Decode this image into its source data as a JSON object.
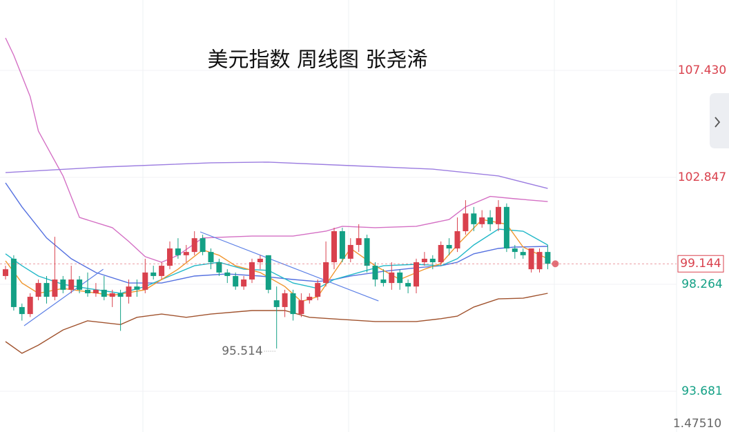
{
  "chart_data": {
    "type": "candlestick",
    "title": "美元指数  周线图 张尧浠",
    "ylim": [
      91.936,
      110.446
    ],
    "yticks": [
      {
        "value": 107.43,
        "label": "107.430"
      },
      {
        "value": 102.847,
        "label": "102.847"
      },
      {
        "value": 98.264,
        "label": "98.264"
      },
      {
        "value": 93.681,
        "label": "93.681"
      }
    ],
    "grid": true,
    "up_color": "#d9414d",
    "down_color": "#13a085",
    "open": [
      98.62,
      99.36,
      97.29,
      96.99,
      97.73,
      98.32,
      97.73,
      98.47,
      98.03,
      98.47,
      98.03,
      97.88,
      98.03,
      97.73,
      97.88,
      97.73,
      98.17,
      98.03,
      98.77,
      98.62,
      99.06,
      99.8,
      99.51,
      99.65,
      100.24,
      99.65,
      99.21,
      98.77,
      98.62,
      98.17,
      98.47,
      99.21,
      99.51,
      97.58,
      97.29,
      97.88,
      96.99,
      97.58,
      97.73,
      98.32,
      99.21,
      100.54,
      99.36,
      99.95,
      100.24,
      99.06,
      98.47,
      98.32,
      98.77,
      98.32,
      98.17,
      99.21,
      99.36,
      99.21,
      99.95,
      99.8,
      100.54,
      101.3,
      100.84,
      101.13,
      100.84,
      101.58,
      99.8,
      99.65,
      98.91,
      98.91,
      99.65
    ],
    "high": [
      99.06,
      99.51,
      97.44,
      97.88,
      98.47,
      98.62,
      100.3,
      98.62,
      99.06,
      98.62,
      98.77,
      98.32,
      98.62,
      98.03,
      98.03,
      98.47,
      98.47,
      99.36,
      99.06,
      99.21,
      100.1,
      100.24,
      99.95,
      100.54,
      100.39,
      99.8,
      99.36,
      98.91,
      98.77,
      98.62,
      99.36,
      99.51,
      99.51,
      98.17,
      98.03,
      98.03,
      97.88,
      97.88,
      98.47,
      100.1,
      100.69,
      100.69,
      100.24,
      100.84,
      100.39,
      99.21,
      98.91,
      99.21,
      98.91,
      98.47,
      99.36,
      99.65,
      99.51,
      100.1,
      100.24,
      101.13,
      101.87,
      101.58,
      101.44,
      101.44,
      101.87,
      101.73,
      99.95,
      99.8,
      99.8,
      99.8,
      99.95
    ],
    "low": [
      98.47,
      97.14,
      96.71,
      96.86,
      97.58,
      97.44,
      97.58,
      97.88,
      97.88,
      97.88,
      97.73,
      97.73,
      97.58,
      97.29,
      96.27,
      97.44,
      97.73,
      97.88,
      98.47,
      98.47,
      98.91,
      99.36,
      99.21,
      99.51,
      99.51,
      98.91,
      98.62,
      98.32,
      98.03,
      98.03,
      98.32,
      98.91,
      97.88,
      95.514,
      96.86,
      96.71,
      96.86,
      97.44,
      97.58,
      98.17,
      98.91,
      99.21,
      99.21,
      99.65,
      98.77,
      98.17,
      98.17,
      98.03,
      98.03,
      97.88,
      97.88,
      99.06,
      98.91,
      99.06,
      99.51,
      99.65,
      100.39,
      100.54,
      100.69,
      100.54,
      100.54,
      99.65,
      99.36,
      99.36,
      98.77,
      98.77,
      98.91
    ],
    "close": [
      98.91,
      97.29,
      96.99,
      97.73,
      98.32,
      97.73,
      98.47,
      98.03,
      98.47,
      98.03,
      97.88,
      98.03,
      97.73,
      97.88,
      97.73,
      98.17,
      98.03,
      98.77,
      98.62,
      99.06,
      99.8,
      99.51,
      99.65,
      100.24,
      99.65,
      99.21,
      98.77,
      98.62,
      98.17,
      98.47,
      99.21,
      99.36,
      98.03,
      97.29,
      97.88,
      96.99,
      97.58,
      97.73,
      98.32,
      99.21,
      100.54,
      99.36,
      99.95,
      100.24,
      99.06,
      98.47,
      98.32,
      98.77,
      98.32,
      98.17,
      99.21,
      99.36,
      99.21,
      99.95,
      99.8,
      100.54,
      101.3,
      100.84,
      101.13,
      100.84,
      101.58,
      99.8,
      99.65,
      99.51,
      99.8,
      99.65,
      99.144
    ],
    "lines": [
      {
        "color": "#d46fc4",
        "x": [
          0,
          1,
          3,
          4,
          7,
          9,
          13,
          15,
          17,
          19,
          21,
          24,
          30,
          35,
          39,
          41,
          45,
          50,
          54,
          56,
          59,
          62,
          66
        ],
        "values": [
          108.82,
          108.08,
          106.31,
          104.83,
          102.91,
          101.13,
          100.69,
          100.1,
          99.45,
          99.21,
          99.51,
          100.25,
          100.33,
          100.33,
          100.54,
          100.75,
          100.69,
          100.75,
          101.04,
          101.58,
          102.03,
          101.93,
          101.81
        ]
      },
      {
        "color": "#9b7ce0",
        "x": [
          0,
          12,
          25,
          32,
          42,
          52,
          60,
          66
        ],
        "values": [
          103.05,
          103.29,
          103.47,
          103.5,
          103.35,
          103.2,
          102.91,
          102.37
        ]
      },
      {
        "color": "#5470e0",
        "x": [
          0,
          2,
          5,
          8,
          11,
          15,
          19,
          23,
          27,
          31,
          35,
          38,
          40,
          42,
          46,
          50,
          53,
          55,
          57,
          60,
          62,
          66
        ],
        "values": [
          102.61,
          101.58,
          100.25,
          99.36,
          98.77,
          98.32,
          98.32,
          98.62,
          98.71,
          98.62,
          98.47,
          98.38,
          98.47,
          98.62,
          98.82,
          98.97,
          99.06,
          99.21,
          99.57,
          99.8,
          99.86,
          99.89
        ]
      },
      {
        "color": "#22b8c8",
        "x": [
          0,
          2,
          4,
          7,
          10,
          14,
          17,
          20,
          23,
          26,
          29,
          32,
          35,
          38,
          40,
          43,
          46,
          50,
          53,
          55,
          57,
          60,
          63,
          66
        ],
        "values": [
          99.57,
          99.06,
          98.62,
          98.26,
          98.09,
          97.88,
          98.17,
          98.62,
          99.06,
          99.21,
          98.91,
          98.86,
          98.32,
          98.09,
          98.47,
          98.77,
          99.06,
          99.12,
          99.06,
          99.36,
          99.95,
          100.63,
          100.54,
          99.95
        ]
      },
      {
        "color": "#f0962e",
        "x": [
          0,
          2,
          4,
          7,
          13,
          17,
          21,
          24,
          26,
          28,
          31,
          34,
          36,
          38,
          40,
          42,
          45,
          48,
          51,
          53,
          55,
          58,
          61,
          63,
          66
        ],
        "values": [
          99.27,
          98.32,
          97.88,
          98.09,
          97.79,
          98.03,
          98.91,
          99.74,
          99.51,
          99.06,
          98.77,
          98.17,
          97.53,
          97.73,
          98.77,
          99.8,
          99.06,
          98.47,
          98.91,
          99.15,
          99.95,
          101.04,
          100.84,
          99.86,
          99.36
        ]
      },
      {
        "color": "#a0522d",
        "x": [
          0,
          2,
          4,
          7,
          10,
          14,
          16,
          19,
          22,
          25,
          30,
          34,
          37,
          41,
          45,
          50,
          53,
          55,
          57,
          60,
          63,
          66
        ],
        "values": [
          95.81,
          95.31,
          95.66,
          96.31,
          96.7,
          96.54,
          96.85,
          96.99,
          96.85,
          96.99,
          97.14,
          97.14,
          96.85,
          96.76,
          96.67,
          96.67,
          96.79,
          96.9,
          97.29,
          97.64,
          97.67,
          97.88
        ]
      }
    ],
    "trendlines": [
      {
        "color": "#5b7fe6",
        "x": [
          2.27,
          11.9
        ],
        "values": [
          96.49,
          98.91
        ]
      },
      {
        "color": "#5b7fe6",
        "x": [
          23.7,
          45.4
        ],
        "values": [
          100.51,
          97.55
        ]
      }
    ],
    "last_price": {
      "value": 99.144,
      "label": "99.144"
    },
    "low_label": {
      "value": 95.514,
      "label": "95.514"
    },
    "corner_text": "1.47510"
  }
}
